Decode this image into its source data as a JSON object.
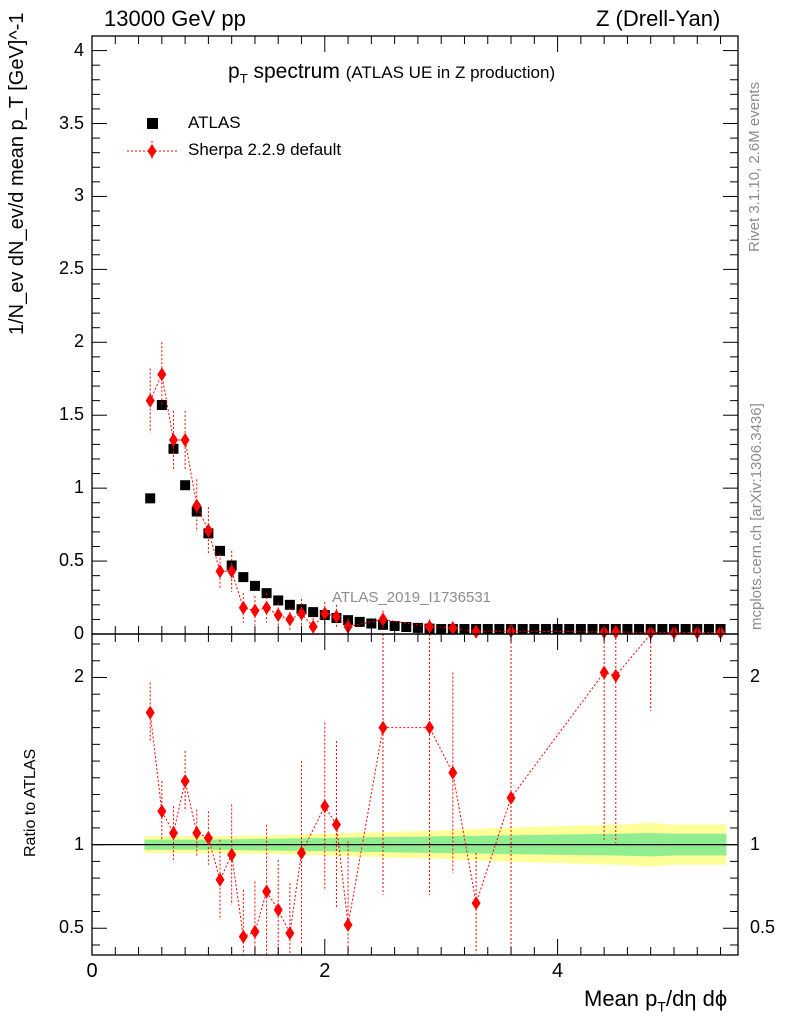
{
  "header": {
    "left": "13000 GeV pp",
    "right": "Z (Drell-Yan)"
  },
  "side_labels": {
    "rivet": "Rivet 3.1.10,  2.6M events",
    "mcplots": "mcplots.cern.ch [arXiv:1306.3436]"
  },
  "watermark": "ATLAS_2019_I1736531",
  "chart_data": [
    {
      "type": "scatter",
      "panel": "main",
      "title": "p_T spectrum",
      "title_main": "p",
      "title_sub": "T",
      "title_word": " spectrum",
      "subtitle": "(ATLAS UE in Z production)",
      "ylabel": "1/N_ev dN_ev/d mean p_T [GeV]^-1",
      "ylim": [
        0,
        4.1
      ],
      "xlim": [
        0,
        5.55
      ],
      "y_ticks": [
        0,
        0.5,
        1,
        1.5,
        2,
        2.5,
        3,
        3.5,
        4
      ],
      "y_tick_labels": [
        "0",
        "0.5",
        "1",
        "1.5",
        "2",
        "2.5",
        "3",
        "3.5",
        "4"
      ],
      "legend_position": "top-left",
      "series": [
        {
          "name": "ATLAS",
          "marker": "square",
          "color": "#000000",
          "x": [
            0.5,
            0.6,
            0.7,
            0.8,
            0.9,
            1.0,
            1.1,
            1.2,
            1.3,
            1.4,
            1.5,
            1.6,
            1.7,
            1.8,
            1.9,
            2.0,
            2.1,
            2.2,
            2.3,
            2.4,
            2.5,
            2.6,
            2.7,
            2.8,
            2.9,
            3.0,
            3.1,
            3.2,
            3.3,
            3.4,
            3.5,
            3.6,
            3.7,
            3.8,
            3.9,
            4.0,
            4.1,
            4.2,
            4.3,
            4.4,
            4.5,
            4.6,
            4.7,
            4.8,
            4.9,
            5.0,
            5.1,
            5.2,
            5.3,
            5.4
          ],
          "y": [
            0.93,
            1.57,
            1.27,
            1.02,
            0.84,
            0.69,
            0.57,
            0.47,
            0.39,
            0.33,
            0.28,
            0.23,
            0.2,
            0.17,
            0.15,
            0.13,
            0.11,
            0.095,
            0.083,
            0.072,
            0.063,
            0.055,
            0.048,
            0.042,
            0.037,
            0.033,
            0.029,
            0.026,
            0.023,
            0.02,
            0.018,
            0.016,
            0.014,
            0.013,
            0.012,
            0.011,
            0.01,
            0.009,
            0.008,
            0.007,
            0.007,
            0.006,
            0.006,
            0.005,
            0.005,
            0.005,
            0.004,
            0.004,
            0.004,
            0.004
          ]
        },
        {
          "name": "Sherpa 2.2.9 default",
          "marker": "diamond",
          "color": "#ff0000",
          "x": [
            0.5,
            0.6,
            0.7,
            0.8,
            0.9,
            1.0,
            1.1,
            1.2,
            1.3,
            1.4,
            1.5,
            1.6,
            1.7,
            1.8,
            1.9,
            2.0,
            2.1,
            2.2,
            2.5,
            2.9,
            3.1,
            3.3,
            3.6,
            4.4,
            4.5,
            4.8,
            5.0,
            5.2,
            5.4
          ],
          "y": [
            1.6,
            1.78,
            1.33,
            1.33,
            0.88,
            0.71,
            0.43,
            0.43,
            0.18,
            0.16,
            0.18,
            0.13,
            0.1,
            0.14,
            0.05,
            0.14,
            0.12,
            0.05,
            0.1,
            0.05,
            0.04,
            0.015,
            0.02,
            0.014,
            0.014,
            0.01,
            0.01,
            0.01,
            0.01
          ],
          "yerr": [
            0.22,
            0.22,
            0.2,
            0.2,
            0.18,
            0.16,
            0.12,
            0.14,
            0.1,
            0.1,
            0.1,
            0.08,
            0.08,
            0.1,
            0.06,
            0.08,
            0.08,
            0.06,
            0.06,
            0.05,
            0.04,
            0.03,
            0.03,
            0.02,
            0.02,
            0.015,
            0.015,
            0.015,
            0.015
          ]
        }
      ]
    },
    {
      "type": "scatter",
      "panel": "ratio",
      "xlabel": "Mean p_T/dη dϕ",
      "xlabel_a": "Mean p",
      "xlabel_sub": "T",
      "xlabel_b": "/dη dϕ",
      "ylabel": "Ratio to ATLAS",
      "ylim": [
        0.34,
        2.26
      ],
      "xlim": [
        0,
        5.55
      ],
      "x_ticks": [
        0,
        2,
        4
      ],
      "x_tick_labels": [
        "0",
        "2",
        "4"
      ],
      "y_ticks": [
        0.5,
        1,
        2
      ],
      "y_tick_labels": [
        "0.5",
        "1",
        "2"
      ],
      "band_x": [
        0.45,
        0.8,
        1.0,
        1.5,
        2.0,
        2.5,
        3.0,
        3.5,
        4.0,
        4.5,
        4.8,
        5.0,
        5.45
      ],
      "band_inner": [
        0.03,
        0.03,
        0.03,
        0.035,
        0.04,
        0.045,
        0.05,
        0.055,
        0.06,
        0.065,
        0.07,
        0.065,
        0.065
      ],
      "band_outer": [
        0.05,
        0.05,
        0.05,
        0.055,
        0.065,
        0.075,
        0.085,
        0.1,
        0.11,
        0.12,
        0.13,
        0.12,
        0.12
      ],
      "series": [
        {
          "name": "Sherpa 2.2.9 default / ATLAS",
          "marker": "diamond",
          "color": "#ff0000",
          "x": [
            0.5,
            0.6,
            0.7,
            0.8,
            0.9,
            1.0,
            1.1,
            1.2,
            1.3,
            1.4,
            1.5,
            1.6,
            1.7,
            1.8,
            2.0,
            2.1,
            2.2,
            2.5,
            2.9,
            3.1,
            3.3,
            3.6,
            4.4,
            4.5,
            4.8
          ],
          "y": [
            1.79,
            1.2,
            1.07,
            1.38,
            1.07,
            1.04,
            0.79,
            0.94,
            0.45,
            0.48,
            0.72,
            0.61,
            0.47,
            0.95,
            1.23,
            1.12,
            0.52,
            1.7,
            1.7,
            1.43,
            0.65,
            1.28,
            2.03,
            2.01,
            2.3
          ],
          "yerr": [
            0.18,
            0.18,
            0.16,
            0.18,
            0.14,
            0.16,
            0.24,
            0.3,
            0.28,
            0.3,
            0.4,
            0.3,
            0.3,
            0.55,
            0.5,
            0.5,
            0.5,
            1.0,
            1.0,
            0.6,
            0.3,
            1.0,
            1.0,
            1.0,
            0.5
          ]
        }
      ]
    }
  ]
}
